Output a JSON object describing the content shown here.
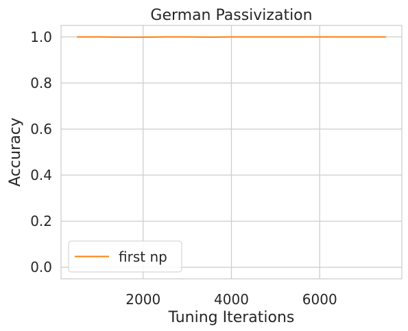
{
  "chart_data": {
    "type": "line",
    "title": "German Passivization",
    "xlabel": "Tuning Iterations",
    "ylabel": "Accuracy",
    "xlim": [
      140,
      7860
    ],
    "ylim": [
      -0.05,
      1.05
    ],
    "xticks": [
      2000,
      4000,
      6000
    ],
    "xtick_labels": [
      "2000",
      "4000",
      "6000"
    ],
    "yticks": [
      0.0,
      0.2,
      0.4,
      0.6,
      0.8,
      1.0
    ],
    "ytick_labels": [
      "0.0",
      "0.2",
      "0.4",
      "0.6",
      "0.8",
      "1.0"
    ],
    "grid": true,
    "legend_position": "lower-left",
    "series": [
      {
        "name": "first np",
        "color": "#ff7f0e",
        "x": [
          500,
          1000,
          1500,
          2000,
          2500,
          3000,
          3500,
          4000,
          4500,
          5000,
          5500,
          6000,
          6500,
          7000,
          7500
        ],
        "y": [
          1.0,
          1.0,
          0.999,
          0.999,
          1.0,
          1.0,
          0.999,
          1.0,
          1.0,
          1.0,
          1.0,
          1.0,
          1.0,
          1.0,
          1.0
        ]
      }
    ]
  }
}
